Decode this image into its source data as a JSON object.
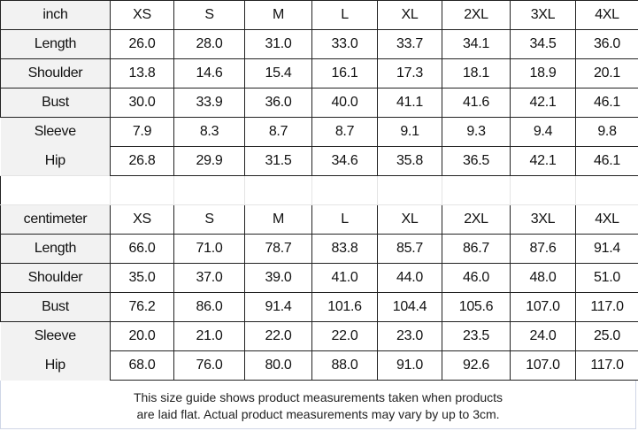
{
  "tables": [
    {
      "unit": "inch",
      "sizes": [
        "XS",
        "S",
        "M",
        "L",
        "XL",
        "2XL",
        "3XL",
        "4XL"
      ],
      "rows": [
        {
          "label": "Length",
          "values": [
            "26.0",
            "28.0",
            "31.0",
            "33.0",
            "33.7",
            "34.1",
            "34.5",
            "36.0"
          ]
        },
        {
          "label": "Shoulder",
          "values": [
            "13.8",
            "14.6",
            "15.4",
            "16.1",
            "17.3",
            "18.1",
            "18.9",
            "20.1"
          ]
        },
        {
          "label": "Bust",
          "values": [
            "30.0",
            "33.9",
            "36.0",
            "40.0",
            "41.1",
            "41.6",
            "42.1",
            "46.1"
          ]
        },
        {
          "label": "Sleeve",
          "values": [
            "7.9",
            "8.3",
            "8.7",
            "8.7",
            "9.1",
            "9.3",
            "9.4",
            "9.8"
          ]
        },
        {
          "label": "Hip",
          "values": [
            "26.8",
            "29.9",
            "31.5",
            "34.6",
            "35.8",
            "36.5",
            "42.1",
            "46.1"
          ]
        }
      ]
    },
    {
      "unit": "centimeter",
      "sizes": [
        "XS",
        "S",
        "M",
        "L",
        "XL",
        "2XL",
        "3XL",
        "4XL"
      ],
      "rows": [
        {
          "label": "Length",
          "values": [
            "66.0",
            "71.0",
            "78.7",
            "83.8",
            "85.7",
            "86.7",
            "87.6",
            "91.4"
          ]
        },
        {
          "label": "Shoulder",
          "values": [
            "35.0",
            "37.0",
            "39.0",
            "41.0",
            "44.0",
            "46.0",
            "48.0",
            "51.0"
          ]
        },
        {
          "label": "Bust",
          "values": [
            "76.2",
            "86.0",
            "91.4",
            "101.6",
            "104.4",
            "105.6",
            "107.0",
            "117.0"
          ]
        },
        {
          "label": "Sleeve",
          "values": [
            "20.0",
            "21.0",
            "22.0",
            "22.0",
            "23.0",
            "23.5",
            "24.0",
            "25.0"
          ]
        },
        {
          "label": "Hip",
          "values": [
            "68.0",
            "76.0",
            "80.0",
            "88.0",
            "91.0",
            "92.6",
            "107.0",
            "117.0"
          ]
        }
      ]
    }
  ],
  "footer": {
    "line1": "This size guide shows product measurements taken when products",
    "line2": "are laid flat. Actual product measurements may vary by up to 3cm."
  }
}
